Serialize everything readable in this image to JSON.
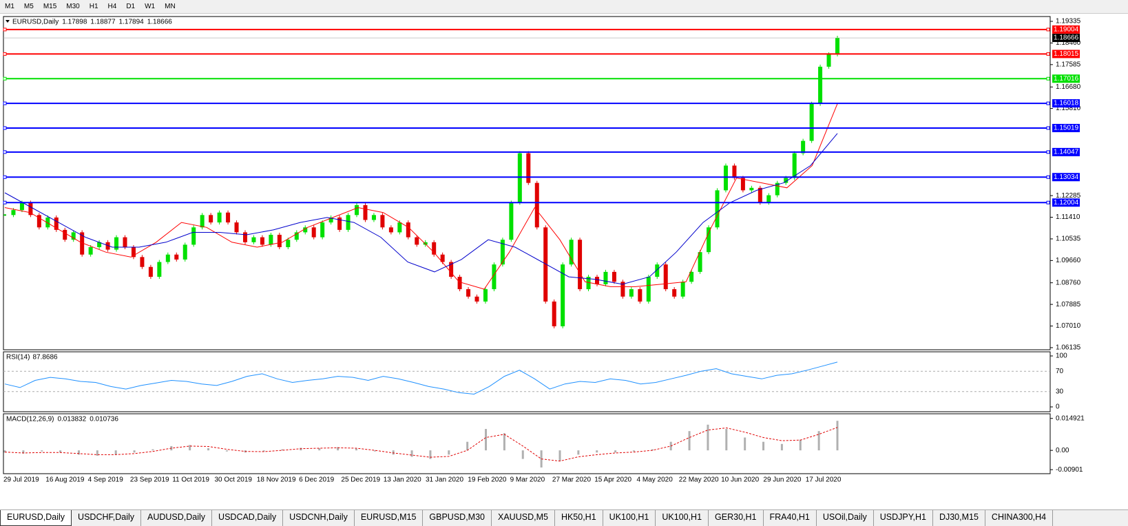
{
  "toolbar": {
    "timeframes": [
      "M1",
      "M5",
      "M15",
      "M30",
      "H1",
      "H4",
      "D1",
      "W1",
      "MN"
    ]
  },
  "main": {
    "symbol": "EURUSD,Daily",
    "open": 1.17898,
    "high": 1.18877,
    "low": 1.17894,
    "close": 1.18666,
    "ylim": [
      1.0605,
      1.1953
    ],
    "yticks": [
      1.19335,
      {
        "value": 1.1846,
        "label": "1.18460"
      },
      1.17585,
      {
        "value": 1.1668,
        "label": "1.16680"
      },
      {
        "value": 1.1581,
        "label": "1.15810"
      },
      1.12285,
      {
        "value": 1.1141,
        "label": "1.11410"
      },
      1.10535,
      {
        "value": 1.0966,
        "label": "1.09660"
      },
      {
        "value": 1.0876,
        "label": "1.08760"
      },
      1.07885,
      {
        "value": 1.0701,
        "label": "1.07010"
      },
      1.06135
    ],
    "levels": [
      {
        "value": 1.19004,
        "color": "#ff0000"
      },
      {
        "value": 1.18015,
        "color": "#ff0000"
      },
      {
        "value": 1.17016,
        "color": "#00e000"
      },
      {
        "value": 1.16018,
        "color": "#0000ff"
      },
      {
        "value": 1.15019,
        "color": "#0000ff"
      },
      {
        "value": 1.14047,
        "color": "#0000ff"
      },
      {
        "value": 1.13034,
        "color": "#0000ff"
      },
      {
        "value": 1.12004,
        "color": "#0000ff"
      }
    ],
    "current_price": 1.18666,
    "closes": [
      1.115,
      1.117,
      1.12,
      1.115,
      1.11,
      1.114,
      1.109,
      1.105,
      1.108,
      1.099,
      1.102,
      1.104,
      1.101,
      1.106,
      1.102,
      1.098,
      1.094,
      1.09,
      1.096,
      1.099,
      1.097,
      1.103,
      1.11,
      1.115,
      1.112,
      1.116,
      1.112,
      1.108,
      1.104,
      1.106,
      1.103,
      1.107,
      1.102,
      1.105,
      1.108,
      1.11,
      1.106,
      1.112,
      1.114,
      1.109,
      1.115,
      1.119,
      1.113,
      1.115,
      1.11,
      1.108,
      1.112,
      1.106,
      1.103,
      1.104,
      1.099,
      1.096,
      1.09,
      1.085,
      1.082,
      1.08,
      1.085,
      1.095,
      1.105,
      1.12,
      1.14,
      1.128,
      1.11,
      1.08,
      1.07,
      1.095,
      1.105,
      1.085,
      1.09,
      1.087,
      1.092,
      1.088,
      1.082,
      1.085,
      1.08,
      1.09,
      1.095,
      1.085,
      1.082,
      1.088,
      1.092,
      1.1,
      1.11,
      1.125,
      1.135,
      1.13,
      1.125,
      1.126,
      1.12,
      1.123,
      1.128,
      1.13,
      1.14,
      1.145,
      1.16,
      1.175,
      1.18,
      1.18666
    ],
    "ma_fast": [
      1.118,
      1.116,
      1.11,
      1.104,
      1.1,
      1.098,
      1.104,
      1.112,
      1.11,
      1.104,
      1.102,
      1.104,
      1.11,
      1.114,
      1.118,
      1.116,
      1.11,
      1.1,
      1.088,
      1.085,
      1.1,
      1.118,
      1.105,
      1.088,
      1.086,
      1.086,
      1.087,
      1.088,
      1.11,
      1.13,
      1.128,
      1.126,
      1.135,
      1.16
    ],
    "ma_slow": [
      1.124,
      1.118,
      1.112,
      1.106,
      1.102,
      1.102,
      1.104,
      1.108,
      1.108,
      1.107,
      1.109,
      1.112,
      1.114,
      1.112,
      1.106,
      1.096,
      1.092,
      1.097,
      1.105,
      1.102,
      1.096,
      1.09,
      1.089,
      1.087,
      1.09,
      1.1,
      1.112,
      1.12,
      1.125,
      1.128,
      1.135,
      1.148
    ]
  },
  "rsi": {
    "name": "RSI(14)",
    "value": 87.8686,
    "ylim": [
      0,
      100
    ],
    "yticks": [
      100,
      70,
      30,
      0
    ],
    "values": [
      45,
      38,
      52,
      58,
      55,
      50,
      48,
      40,
      35,
      42,
      47,
      52,
      50,
      45,
      42,
      50,
      60,
      65,
      55,
      48,
      52,
      55,
      60,
      58,
      52,
      60,
      55,
      48,
      40,
      35,
      28,
      25,
      40,
      60,
      72,
      55,
      35,
      45,
      50,
      48,
      55,
      52,
      45,
      48,
      55,
      62,
      70,
      75,
      65,
      60,
      55,
      62,
      65,
      72,
      80,
      88
    ]
  },
  "macd": {
    "name": "MACD(12,26,9)",
    "main": 0.013832,
    "signal": 0.010736,
    "ylim": [
      -0.0096,
      0.0158
    ],
    "yticks": [
      0.014921,
      {
        "value": 0,
        "label": "0.00"
      },
      -0.00901
    ],
    "histogram": [
      -0.001,
      -0.0015,
      -0.0005,
      -0.001,
      -0.002,
      -0.0025,
      -0.002,
      -0.001,
      0.0005,
      0.002,
      0.0025,
      0.001,
      -0.0005,
      -0.001,
      -0.0005,
      0.0005,
      0.0012,
      0.001,
      0.0015,
      0.0008,
      -0.0005,
      -0.002,
      -0.003,
      -0.004,
      -0.002,
      0.004,
      0.01,
      0.008,
      -0.004,
      -0.008,
      -0.005,
      -0.002,
      -0.001,
      -0.001,
      -0.0005,
      0.0005,
      0.004,
      0.009,
      0.012,
      0.01,
      0.006,
      0.004,
      0.003,
      0.005,
      0.009,
      0.0138
    ],
    "signal_line": [
      -0.0008,
      -0.0012,
      -0.001,
      -0.001,
      -0.0015,
      -0.002,
      -0.002,
      -0.0015,
      -0.0005,
      0.001,
      0.002,
      0.0018,
      0.0005,
      -0.0005,
      -0.0006,
      0,
      0.0008,
      0.001,
      0.0012,
      0.001,
      0,
      -0.0012,
      -0.0022,
      -0.0032,
      -0.0028,
      0,
      0.006,
      0.0075,
      0.002,
      -0.004,
      -0.005,
      -0.003,
      -0.002,
      -0.0012,
      -0.0008,
      0,
      0.002,
      0.006,
      0.0095,
      0.0105,
      0.0085,
      0.006,
      0.0045,
      0.0048,
      0.0075,
      0.010736
    ]
  },
  "dates": [
    "29 Jul 2019",
    "16 Aug 2019",
    "4 Sep 2019",
    "23 Sep 2019",
    "11 Oct 2019",
    "30 Oct 2019",
    "18 Nov 2019",
    "6 Dec 2019",
    "25 Dec 2019",
    "13 Jan 2020",
    "31 Jan 2020",
    "19 Feb 2020",
    "9 Mar 2020",
    "27 Mar 2020",
    "15 Apr 2020",
    "4 May 2020",
    "22 May 2020",
    "10 Jun 2020",
    "29 Jun 2020",
    "17 Jul 2020"
  ],
  "tabs": [
    "EURUSD,Daily",
    "USDCHF,Daily",
    "AUDUSD,Daily",
    "USDCAD,Daily",
    "USDCNH,Daily",
    "EURUSD,M15",
    "GBPUSD,M30",
    "XAUUSD,M5",
    "HK50,H1",
    "UK100,H1",
    "UK100,H1",
    "GER30,H1",
    "FRA40,H1",
    "USOil,Daily",
    "USDJPY,H1",
    "DJ30,M15",
    "CHINA300,H4"
  ]
}
